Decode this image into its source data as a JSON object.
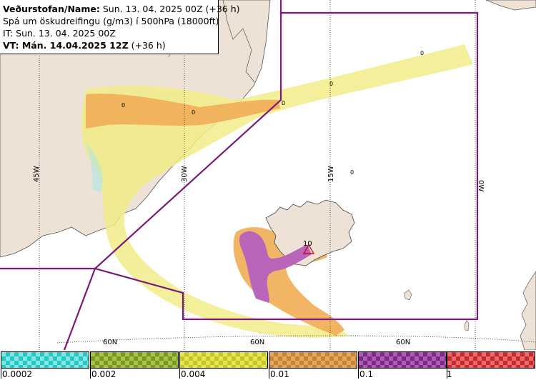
{
  "info": {
    "line1_bold": "Veðurstofan/Name:",
    "line1_rest": " Sun. 13. 04. 2025 00Z (+36 h)",
    "line2": "Spá um öskudreifingu (g/m3) í 500hPa (18000ft)",
    "line3": "IT: Sun. 13. 04. 2025 00Z",
    "line4_bold": "VT: Mán. 14.04.2025 12Z",
    "line4_rest": " (+36 h)"
  },
  "grid": {
    "lon_labels": [
      "45W",
      "30W",
      "15W",
      "0W"
    ],
    "lat_labels": [
      "60N",
      "60N",
      "60N"
    ]
  },
  "markers": {
    "zero_labels": [
      "0",
      "0",
      "0",
      "0",
      "0",
      "0"
    ],
    "volcano_label": "10"
  },
  "legend": {
    "colors": [
      "#27c6c7",
      "#7a9a1e",
      "#c9c621",
      "#c98333",
      "#7e2a86",
      "#c92a2e"
    ],
    "colors_light": [
      "#7fe6e6",
      "#a9c24b",
      "#e5e45a",
      "#e0a860",
      "#ab5db3",
      "#e86a6d"
    ],
    "ticks": [
      "0.0002",
      "0.002",
      "0.004",
      "0.01",
      "0.1",
      "1"
    ]
  }
}
